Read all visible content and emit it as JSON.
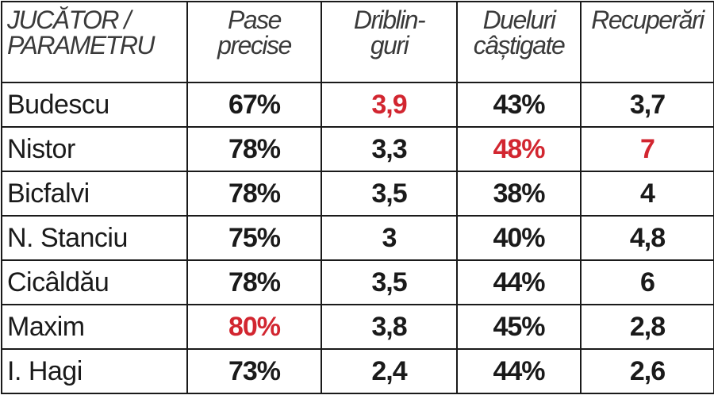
{
  "table": {
    "headers": [
      [
        "JUCĂTOR /",
        "PARAMETRU"
      ],
      [
        "Pase",
        "precise"
      ],
      [
        "Driblin-",
        "guri"
      ],
      [
        "Dueluri",
        "câștigate"
      ],
      [
        "Recuperări"
      ]
    ],
    "highlight_color": "#d22630",
    "rows": [
      {
        "name": "Budescu",
        "pase": "67%",
        "dribl": "3,9",
        "duel": "43%",
        "rec": "3,7",
        "highlight": [
          "dribl"
        ]
      },
      {
        "name": "Nistor",
        "pase": "78%",
        "dribl": "3,3",
        "duel": "48%",
        "rec": "7",
        "highlight": [
          "duel",
          "rec"
        ]
      },
      {
        "name": "Bicfalvi",
        "pase": "78%",
        "dribl": "3,5",
        "duel": "38%",
        "rec": "4",
        "highlight": []
      },
      {
        "name": "N. Stanciu",
        "pase": "75%",
        "dribl": "3",
        "duel": "40%",
        "rec": "4,8",
        "highlight": []
      },
      {
        "name": "Cicâldău",
        "pase": "78%",
        "dribl": "3,5",
        "duel": "44%",
        "rec": "6",
        "highlight": []
      },
      {
        "name": "Maxim",
        "pase": "80%",
        "dribl": "3,8",
        "duel": "45%",
        "rec": "2,8",
        "highlight": [
          "pase"
        ]
      },
      {
        "name": "I. Hagi",
        "pase": "73%",
        "dribl": "2,4",
        "duel": "44%",
        "rec": "2,6",
        "highlight": []
      }
    ]
  }
}
